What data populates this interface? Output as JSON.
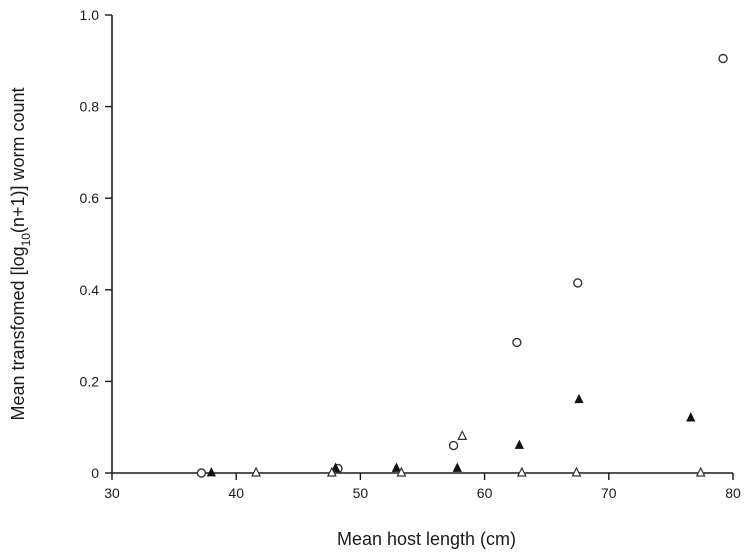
{
  "chart_data": {
    "type": "scatter",
    "title": "",
    "xlabel": "Mean host length (cm)",
    "ylabel_parts": {
      "pre": "Mean transfomed [log",
      "sub": "10",
      "post": "(n+1)] worm count"
    },
    "xlim": [
      30,
      80
    ],
    "ylim": [
      0,
      1.0
    ],
    "x_ticks": [
      30,
      40,
      50,
      60,
      70,
      80
    ],
    "y_ticks": [
      0,
      0.2,
      0.4,
      0.6,
      0.8,
      1.0
    ],
    "x_tick_labels": [
      "30",
      "40",
      "50",
      "60",
      "70",
      "80"
    ],
    "y_tick_labels": [
      "0",
      "0.2",
      "0.4",
      "0.6",
      "0.8",
      "1.0"
    ],
    "grid": false,
    "legend": "none",
    "series": [
      {
        "marker": "open-circle",
        "color": "#333333",
        "points": [
          {
            "x": 37.2,
            "y": 0.0
          },
          {
            "x": 48.2,
            "y": 0.01
          },
          {
            "x": 57.5,
            "y": 0.06
          },
          {
            "x": 62.6,
            "y": 0.285
          },
          {
            "x": 67.5,
            "y": 0.415
          },
          {
            "x": 79.2,
            "y": 0.905
          }
        ]
      },
      {
        "marker": "filled-triangle",
        "color": "#111111",
        "points": [
          {
            "x": 38.0,
            "y": 0.0
          },
          {
            "x": 48.0,
            "y": 0.01
          },
          {
            "x": 52.9,
            "y": 0.01
          },
          {
            "x": 57.8,
            "y": 0.01
          },
          {
            "x": 62.8,
            "y": 0.06
          },
          {
            "x": 67.6,
            "y": 0.16
          },
          {
            "x": 76.6,
            "y": 0.12
          }
        ]
      },
      {
        "marker": "open-triangle",
        "color": "#333333",
        "points": [
          {
            "x": 41.6,
            "y": 0.0
          },
          {
            "x": 47.7,
            "y": 0.0
          },
          {
            "x": 53.3,
            "y": 0.0
          },
          {
            "x": 58.2,
            "y": 0.08
          },
          {
            "x": 63.0,
            "y": 0.0
          },
          {
            "x": 67.4,
            "y": 0.0
          },
          {
            "x": 77.4,
            "y": 0.0
          }
        ]
      }
    ]
  }
}
